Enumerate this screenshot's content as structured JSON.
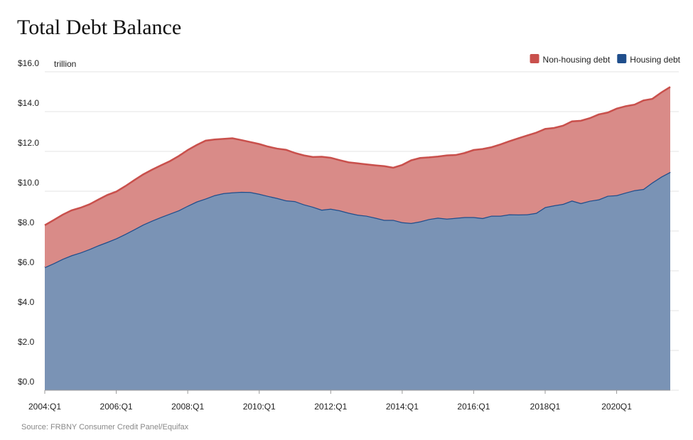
{
  "chart_data": {
    "type": "stacked_area",
    "title": "Total Debt Balance",
    "y_unit": "trillion",
    "source": "Source: FRBNY Consumer Credit Panel/Equifax",
    "categories": [
      "2004:Q1",
      null,
      null,
      null,
      null,
      null,
      null,
      null,
      "2006:Q1",
      null,
      null,
      null,
      null,
      null,
      null,
      null,
      "2008:Q1",
      null,
      null,
      null,
      null,
      null,
      null,
      null,
      "2010:Q1",
      null,
      null,
      null,
      null,
      null,
      null,
      null,
      "2012:Q1",
      null,
      null,
      null,
      null,
      null,
      null,
      null,
      "2014:Q1",
      null,
      null,
      null,
      null,
      null,
      null,
      null,
      "2016:Q1",
      null,
      null,
      null,
      null,
      null,
      null,
      null,
      "2018Q1",
      null,
      null,
      null,
      null,
      null,
      null,
      null,
      "2020Q1",
      null,
      null,
      null,
      null,
      null,
      null
    ],
    "series": [
      {
        "name": "Non-housing debt",
        "color": "#c9504c",
        "fill": "#d98b88",
        "values": [
          2.11,
          2.17,
          2.22,
          2.26,
          2.25,
          2.25,
          2.3,
          2.36,
          2.35,
          2.4,
          2.47,
          2.52,
          2.56,
          2.6,
          2.64,
          2.73,
          2.8,
          2.84,
          2.91,
          2.8,
          2.73,
          2.72,
          2.6,
          2.51,
          2.5,
          2.48,
          2.48,
          2.54,
          2.42,
          2.46,
          2.5,
          2.66,
          2.56,
          2.52,
          2.53,
          2.58,
          2.58,
          2.63,
          2.7,
          2.62,
          2.88,
          3.15,
          3.19,
          3.1,
          3.07,
          3.18,
          3.16,
          3.22,
          3.37,
          3.47,
          3.44,
          3.58,
          3.67,
          3.83,
          3.96,
          4.03,
          3.93,
          3.89,
          3.93,
          3.98,
          4.14,
          4.15,
          4.27,
          4.18,
          4.35,
          4.34,
          4.3,
          4.45,
          4.2,
          4.23,
          4.27
        ]
      },
      {
        "name": "Housing debt",
        "color": "#1f4e8c",
        "fill": "#7a93b5",
        "values": [
          6.18,
          6.38,
          6.6,
          6.78,
          6.92,
          7.09,
          7.28,
          7.45,
          7.63,
          7.85,
          8.08,
          8.32,
          8.52,
          8.7,
          8.87,
          9.04,
          9.27,
          9.48,
          9.63,
          9.8,
          9.9,
          9.94,
          9.97,
          9.96,
          9.87,
          9.76,
          9.66,
          9.54,
          9.5,
          9.34,
          9.22,
          9.07,
          9.12,
          9.04,
          8.92,
          8.82,
          8.77,
          8.67,
          8.56,
          8.56,
          8.44,
          8.4,
          8.48,
          8.6,
          8.67,
          8.62,
          8.66,
          8.7,
          8.7,
          8.65,
          8.77,
          8.77,
          8.84,
          8.83,
          8.84,
          8.91,
          9.2,
          9.29,
          9.36,
          9.53,
          9.4,
          9.52,
          9.59,
          9.77,
          9.8,
          9.93,
          10.05,
          10.11,
          10.44,
          10.73,
          10.97
        ]
      }
    ],
    "ylim": [
      0,
      16
    ],
    "yticks": [
      {
        "value": 0,
        "label": "$0.0"
      },
      {
        "value": 2,
        "label": "$2.0"
      },
      {
        "value": 4,
        "label": "$4.0"
      },
      {
        "value": 6,
        "label": "$6.0"
      },
      {
        "value": 8,
        "label": "$8.0"
      },
      {
        "value": 10,
        "label": "$10.0"
      },
      {
        "value": 12,
        "label": "$12.0"
      },
      {
        "value": 14,
        "label": "$14.0"
      },
      {
        "value": 16,
        "label": "$16.0"
      }
    ],
    "grid": true,
    "legend": "top-right"
  }
}
